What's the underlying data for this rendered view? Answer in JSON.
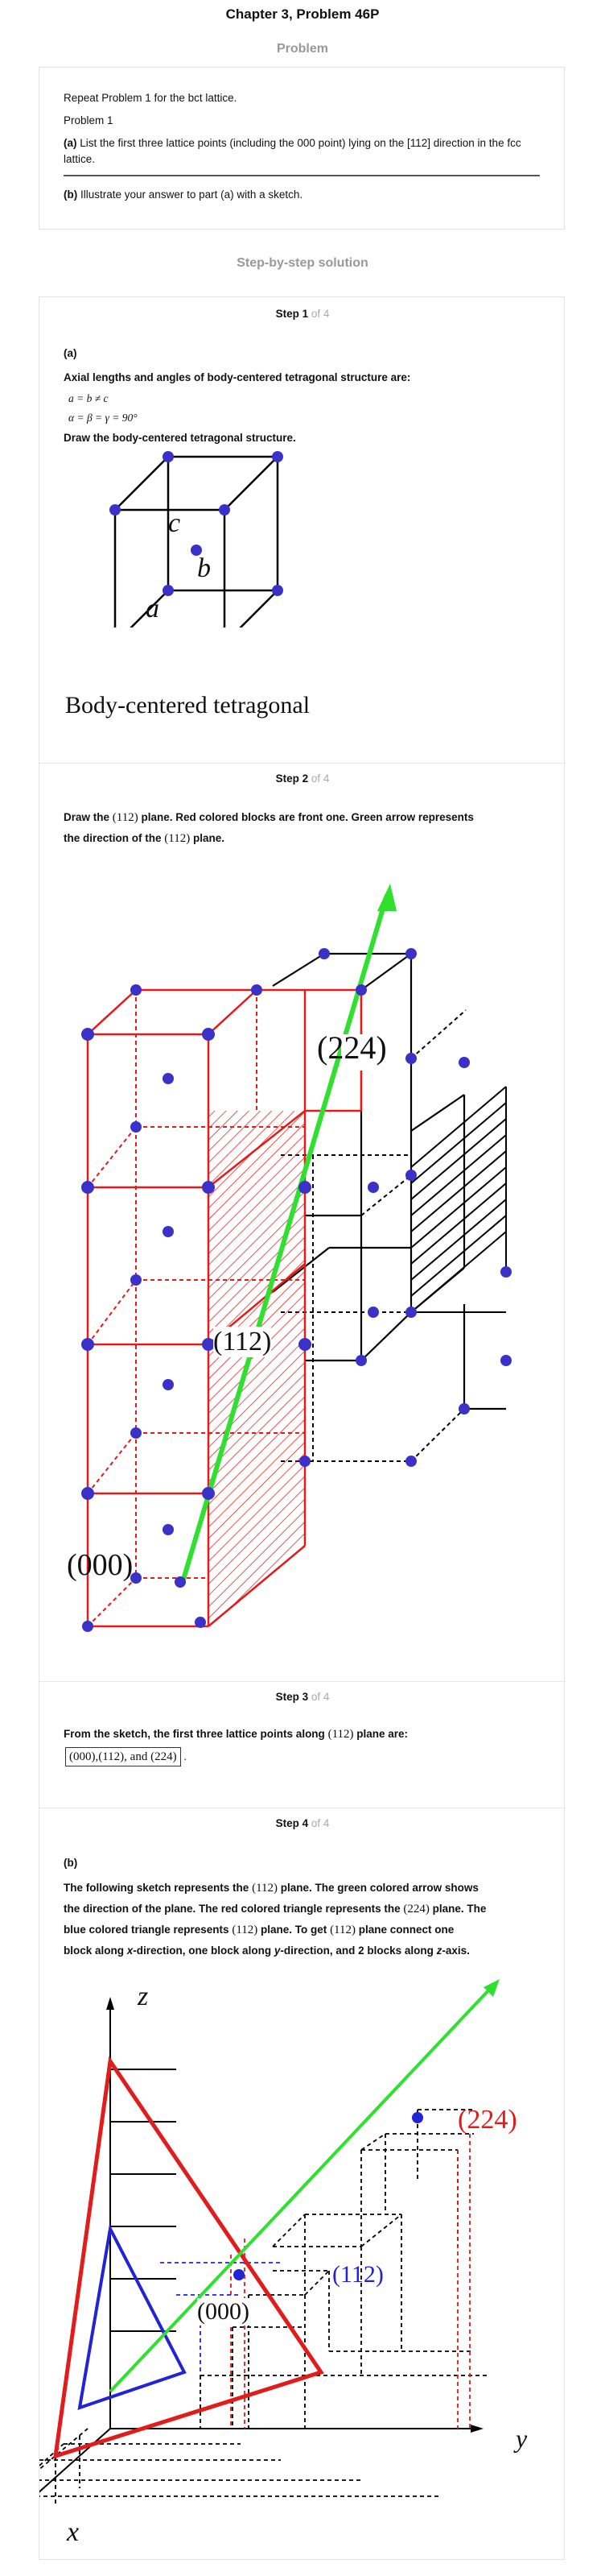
{
  "header": {
    "title": "Chapter 3, Problem 46P",
    "problem_label": "Problem",
    "solution_label": "Step-by-step solution"
  },
  "problem": {
    "line1": "Repeat Problem 1 for the bct lattice.",
    "line2": "Problem 1",
    "part_a_tag": "(a)",
    "part_a_text": "List the first three lattice points (including the 000 point) lying on the [112] direction in the fcc lattice.",
    "part_b_tag": "(b)",
    "part_b_text": "Illustrate your answer to part (a) with a sketch."
  },
  "steps": {
    "of_label": "of 4",
    "step1": {
      "heading": "Step 1",
      "part": "(a)",
      "axial_text": "Axial lengths and angles of body-centered tetragonal structure are:",
      "eq1": "a = b ≠ c",
      "eq2": "α = β = γ = 90°",
      "draw_text": "Draw the body-centered tetragonal structure.",
      "fig_caption": "Body-centered tetragonal",
      "labels": {
        "a": "a",
        "b": "b",
        "c": "c"
      }
    },
    "step2": {
      "heading": "Step 2",
      "text1_a": "Draw the",
      "text1_plane": "(112)",
      "text1_b": "plane. Red colored blocks are front one. Green arrow represents",
      "text2_a": "the direction of the",
      "text2_plane": "(112)",
      "text2_b": "plane.",
      "fig_labels": {
        "p224": "(224)",
        "p112": "(112)",
        "p000": "(000)"
      }
    },
    "step3": {
      "heading": "Step 3",
      "text_a": "From the sketch, the first three lattice points along",
      "text_plane": "(112)",
      "text_b": "plane are:",
      "answer": "(000),(112), and (224)",
      "tail": "."
    },
    "step4": {
      "heading": "Step 4",
      "part": "(b)",
      "l1_a": "The following sketch represents the",
      "l1_plane": "(112)",
      "l1_b": "plane. The green colored arrow shows",
      "l2_a": "the direction of the plane. The red colored triangle represents the",
      "l2_plane": "(224)",
      "l2_b": "plane. The",
      "l3_a": "blue colored triangle represents",
      "l3_plane": "(112)",
      "l3_b": "plane. To get",
      "l3_plane2": "(112)",
      "l3_c": "plane connect one",
      "l4_a": "block along",
      "l4_x": "x",
      "l4_b": "-direction, one block along",
      "l4_y": "y",
      "l4_c": "-direction, and 2 blocks along",
      "l4_z": "z",
      "l4_d": "-axis.",
      "fig_labels": {
        "z": "z",
        "x": "x",
        "y": "y",
        "p224": "(224)",
        "p112": "(112)",
        "p000": "(000)"
      }
    }
  },
  "colors": {
    "red": "#e21b1b",
    "green": "#2fe02f",
    "blue": "#2323d6",
    "dot": "#3a32c8",
    "muted": "#999999"
  }
}
